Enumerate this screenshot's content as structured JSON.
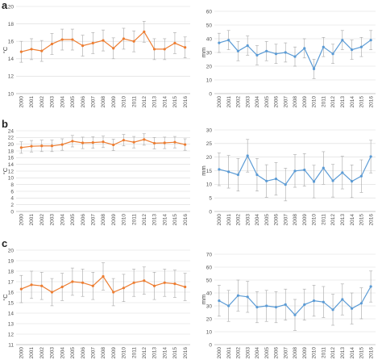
{
  "panel_letters": [
    "a",
    "b",
    "c"
  ],
  "chart_data": [
    {
      "panel": "a",
      "type": "line",
      "ylabel": "°C",
      "ylim": [
        10,
        20
      ],
      "yticks": [
        10,
        12,
        14,
        16,
        18,
        20
      ],
      "categories": [
        "2000",
        "2001",
        "2002",
        "2003",
        "2004",
        "2005",
        "2006",
        "2007",
        "2008",
        "2009",
        "2010",
        "2011",
        "2012",
        "2013",
        "2014",
        "2015",
        "2016"
      ],
      "values": [
        14.8,
        15.1,
        14.9,
        15.7,
        16.2,
        16.2,
        15.5,
        15.8,
        16.1,
        15.2,
        16.3,
        16.0,
        17.1,
        15.1,
        15.1,
        15.8,
        15.3
      ],
      "error": 1.2,
      "color": "#ED7D31",
      "grid": true
    },
    {
      "panel": "a",
      "type": "line",
      "ylabel": "mm",
      "ylim": [
        0,
        60
      ],
      "yticks": [
        0,
        10,
        20,
        30,
        40,
        50,
        60
      ],
      "categories": [
        "2000",
        "2001",
        "2002",
        "2003",
        "2004",
        "2005",
        "2006",
        "2007",
        "2008",
        "2009",
        "2010",
        "2011",
        "2012",
        "2013",
        "2014",
        "2015",
        "2016"
      ],
      "values": [
        37,
        39,
        31,
        35,
        28,
        31,
        29,
        30,
        27,
        33,
        18,
        34,
        29,
        39,
        32,
        34,
        39
      ],
      "error": 7,
      "color": "#5B9BD5",
      "grid": true
    },
    {
      "panel": "b",
      "type": "line",
      "ylabel": "°C",
      "ylim": [
        0,
        24
      ],
      "yticks": [
        0,
        2,
        4,
        6,
        8,
        10,
        12,
        14,
        16,
        18,
        20,
        22,
        24
      ],
      "categories": [
        "2000",
        "2001",
        "2002",
        "2003",
        "2004",
        "2005",
        "2006",
        "2007",
        "2008",
        "2009",
        "2010",
        "2011",
        "2012",
        "2013",
        "2014",
        "2015",
        "2016"
      ],
      "values": [
        19.0,
        19.4,
        19.5,
        19.5,
        19.9,
        20.9,
        20.4,
        20.5,
        20.7,
        19.8,
        21.2,
        20.6,
        21.4,
        20.3,
        20.4,
        20.6,
        19.9
      ],
      "error": 1.7,
      "color": "#ED7D31",
      "grid": true
    },
    {
      "panel": "b",
      "type": "line",
      "ylabel": "mm",
      "ylim": [
        0,
        30
      ],
      "yticks": [
        0,
        5,
        10,
        15,
        20,
        25,
        30
      ],
      "categories": [
        "2000",
        "2001",
        "2002",
        "2003",
        "2004",
        "2005",
        "2006",
        "2007",
        "2008",
        "2009",
        "2010",
        "2011",
        "2012",
        "2013",
        "2014",
        "2015",
        "2016"
      ],
      "values": [
        15.5,
        14.6,
        13.5,
        20.5,
        13.5,
        11.2,
        12.0,
        9.9,
        14.9,
        15.3,
        11.0,
        16.0,
        11.3,
        14.3,
        11.1,
        13.0,
        20.2
      ],
      "error": 6,
      "color": "#5B9BD5",
      "grid": true
    },
    {
      "panel": "c",
      "type": "line",
      "ylabel": "°C",
      "ylim": [
        11,
        20
      ],
      "yticks": [
        11,
        12,
        13,
        14,
        15,
        16,
        17,
        18,
        19,
        20
      ],
      "categories": [
        "2000",
        "2001",
        "2002",
        "2003",
        "2004",
        "2005",
        "2006",
        "2007",
        "2008",
        "2009",
        "2010",
        "2011",
        "2012",
        "2013",
        "2014",
        "2015",
        "2016"
      ],
      "values": [
        16.3,
        16.7,
        16.6,
        16.0,
        16.5,
        17.0,
        16.9,
        16.6,
        17.5,
        16.0,
        16.4,
        16.9,
        17.1,
        16.6,
        16.9,
        16.8,
        16.5
      ],
      "error": 1.3,
      "color": "#ED7D31",
      "grid": true
    },
    {
      "panel": "c",
      "type": "line",
      "ylabel": "mm",
      "ylim": [
        0,
        70
      ],
      "yticks": [
        0,
        10,
        20,
        30,
        40,
        50,
        60,
        70
      ],
      "categories": [
        "2000",
        "2001",
        "2002",
        "2003",
        "2004",
        "2005",
        "2006",
        "2007",
        "2008",
        "2009",
        "2010",
        "2011",
        "2012",
        "2013",
        "2014",
        "2015",
        "2016"
      ],
      "values": [
        34,
        30,
        38,
        37,
        29,
        30,
        29,
        31,
        23,
        31,
        34,
        33,
        27,
        35,
        28,
        32,
        45
      ],
      "error": 12,
      "color": "#5B9BD5",
      "grid": true
    }
  ]
}
